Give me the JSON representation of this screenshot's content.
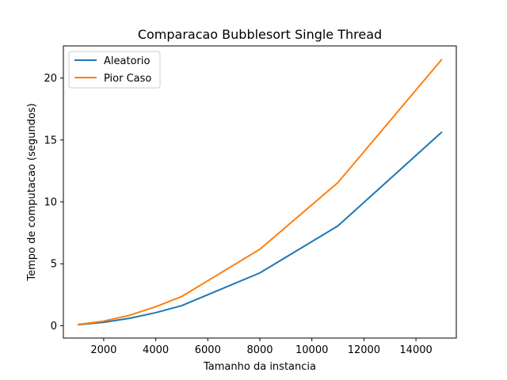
{
  "chart_data": {
    "type": "line",
    "title": "Comparacao Bubblesort Single Thread",
    "xlabel": "Tamanho da instancia",
    "ylabel": "Tempo de computacao (segundos)",
    "xlim": [
      450,
      15550
    ],
    "ylim": [
      -1.0,
      22.6
    ],
    "xticks": [
      2000,
      4000,
      6000,
      8000,
      10000,
      12000,
      14000
    ],
    "xtick_labels": [
      "2000",
      "4000",
      "6000",
      "8000",
      "10000",
      "12000",
      "14000"
    ],
    "yticks": [
      0,
      5,
      10,
      15,
      20
    ],
    "ytick_labels": [
      "0",
      "5",
      "10",
      "15",
      "20"
    ],
    "grid": false,
    "legend": "top-left",
    "series": [
      {
        "name": "Aleatorio",
        "color": "#1f77b4",
        "x": [
          1000,
          2000,
          3000,
          4000,
          5000,
          8000,
          11000,
          15000
        ],
        "y": [
          0.07,
          0.27,
          0.6,
          1.05,
          1.62,
          4.26,
          8.06,
          15.65
        ]
      },
      {
        "name": "Pior Caso",
        "color": "#ff7f0e",
        "x": [
          1000,
          2000,
          3000,
          4000,
          5000,
          8000,
          11000,
          15000
        ],
        "y": [
          0.09,
          0.37,
          0.84,
          1.53,
          2.36,
          6.17,
          11.56,
          21.53
        ]
      }
    ]
  }
}
